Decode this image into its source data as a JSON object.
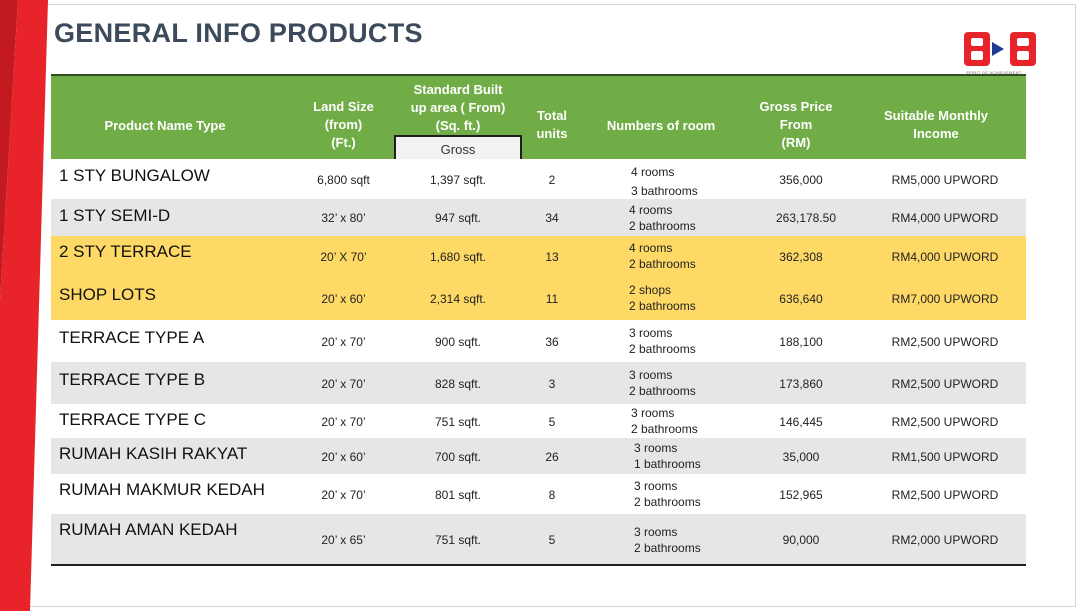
{
  "title": "GENERAL INFO PRODUCTS",
  "logo": {
    "text": "B▶B",
    "tagline": "SPIRIT OF ACHIEVEMENT"
  },
  "colors": {
    "header": "#70ad47",
    "stripe": "#e8232a",
    "title": "#3d4a5c",
    "highlight": "#ffd966",
    "alt": "#e6e6e6"
  },
  "headers": {
    "name": "Product Name Type",
    "land": [
      "Land Size",
      "(from)",
      "(Ft.)"
    ],
    "built": [
      "Standard Built",
      "up area ( From)",
      "(Sq. ft.)"
    ],
    "gross": "Gross",
    "units": [
      "Total",
      "units"
    ],
    "rooms": "Numbers of room",
    "price": [
      "Gross Price",
      "From",
      "(RM)"
    ],
    "income": [
      "Suitable Monthly",
      "Income"
    ]
  },
  "rows": [
    {
      "name": "1 STY BUNGALOW",
      "land": "6,800 sqft",
      "built": "1,397 sqft.",
      "units": "2",
      "rooms1": "4 rooms",
      "rooms2": "3 bathrooms",
      "price": "356,000",
      "income": "RM5,000 UPWORD"
    },
    {
      "name": "1 STY SEMI-D",
      "land": "32’ x 80’",
      "built": "947 sqft.",
      "units": "34",
      "rooms1": "4 rooms",
      "rooms2": "2 bathrooms",
      "price": "263,178.50",
      "income": "RM4,000 UPWORD"
    },
    {
      "name": "2 STY TERRACE",
      "land": "20’ X 70’",
      "built": "1,680 sqft.",
      "units": "13",
      "rooms1": "4 rooms",
      "rooms2": "2 bathrooms",
      "price": "362,308",
      "income": "RM4,000 UPWORD"
    },
    {
      "name": "SHOP LOTS",
      "land": "20’ x 60’",
      "built": "2,314 sqft.",
      "units": "11",
      "rooms1": "2 shops",
      "rooms2": "2 bathrooms",
      "price": "636,640",
      "income": "RM7,000 UPWORD"
    },
    {
      "name": "TERRACE TYPE A",
      "land": "20’ x 70’",
      "built": "900 sqft.",
      "units": "36",
      "rooms1": "3 rooms",
      "rooms2": "2 bathrooms",
      "price": "188,100",
      "income": "RM2,500 UPWORD"
    },
    {
      "name": "TERRACE TYPE B",
      "land": "20’ x 70’",
      "built": "828 sqft.",
      "units": "3",
      "rooms1": "3 rooms",
      "rooms2": "2 bathrooms",
      "price": "173,860",
      "income": "RM2,500 UPWORD"
    },
    {
      "name": "TERRACE TYPE C",
      "land": "20’ x 70’",
      "built": "751 sqft.",
      "units": "5",
      "rooms1": "3 rooms",
      "rooms2": "2 bathrooms",
      "price": "146,445",
      "income": "RM2,500 UPWORD"
    },
    {
      "name": "RUMAH KASIH RAKYAT",
      "land": "20’ x 60’",
      "built": "700 sqft.",
      "units": "26",
      "rooms1": "3 rooms",
      "rooms2": "1 bathrooms",
      "price": "35,000",
      "income": "RM1,500 UPWORD"
    },
    {
      "name": "RUMAH MAKMUR KEDAH",
      "land": "20’ x 70’",
      "built": "801 sqft.",
      "units": "8",
      "rooms1": "3 rooms",
      "rooms2": "2 bathrooms",
      "price": "152,965",
      "income": "RM2,500 UPWORD"
    },
    {
      "name": "RUMAH AMAN KEDAH",
      "land": "20’ x 65’",
      "built": "751 sqft.",
      "units": "5",
      "rooms1": "3 rooms",
      "rooms2": "2 bathrooms",
      "price": "90,000",
      "income": "RM2,000 UPWORD"
    }
  ]
}
